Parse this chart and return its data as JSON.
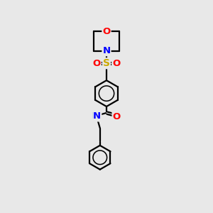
{
  "bg_color": "#e8e8e8",
  "bond_color": "#000000",
  "atom_colors": {
    "O": "#ff0000",
    "N": "#0000ff",
    "S": "#ccaa00",
    "H": "#008080",
    "C": "#000000"
  },
  "line_width": 1.6,
  "font_size": 9.5
}
